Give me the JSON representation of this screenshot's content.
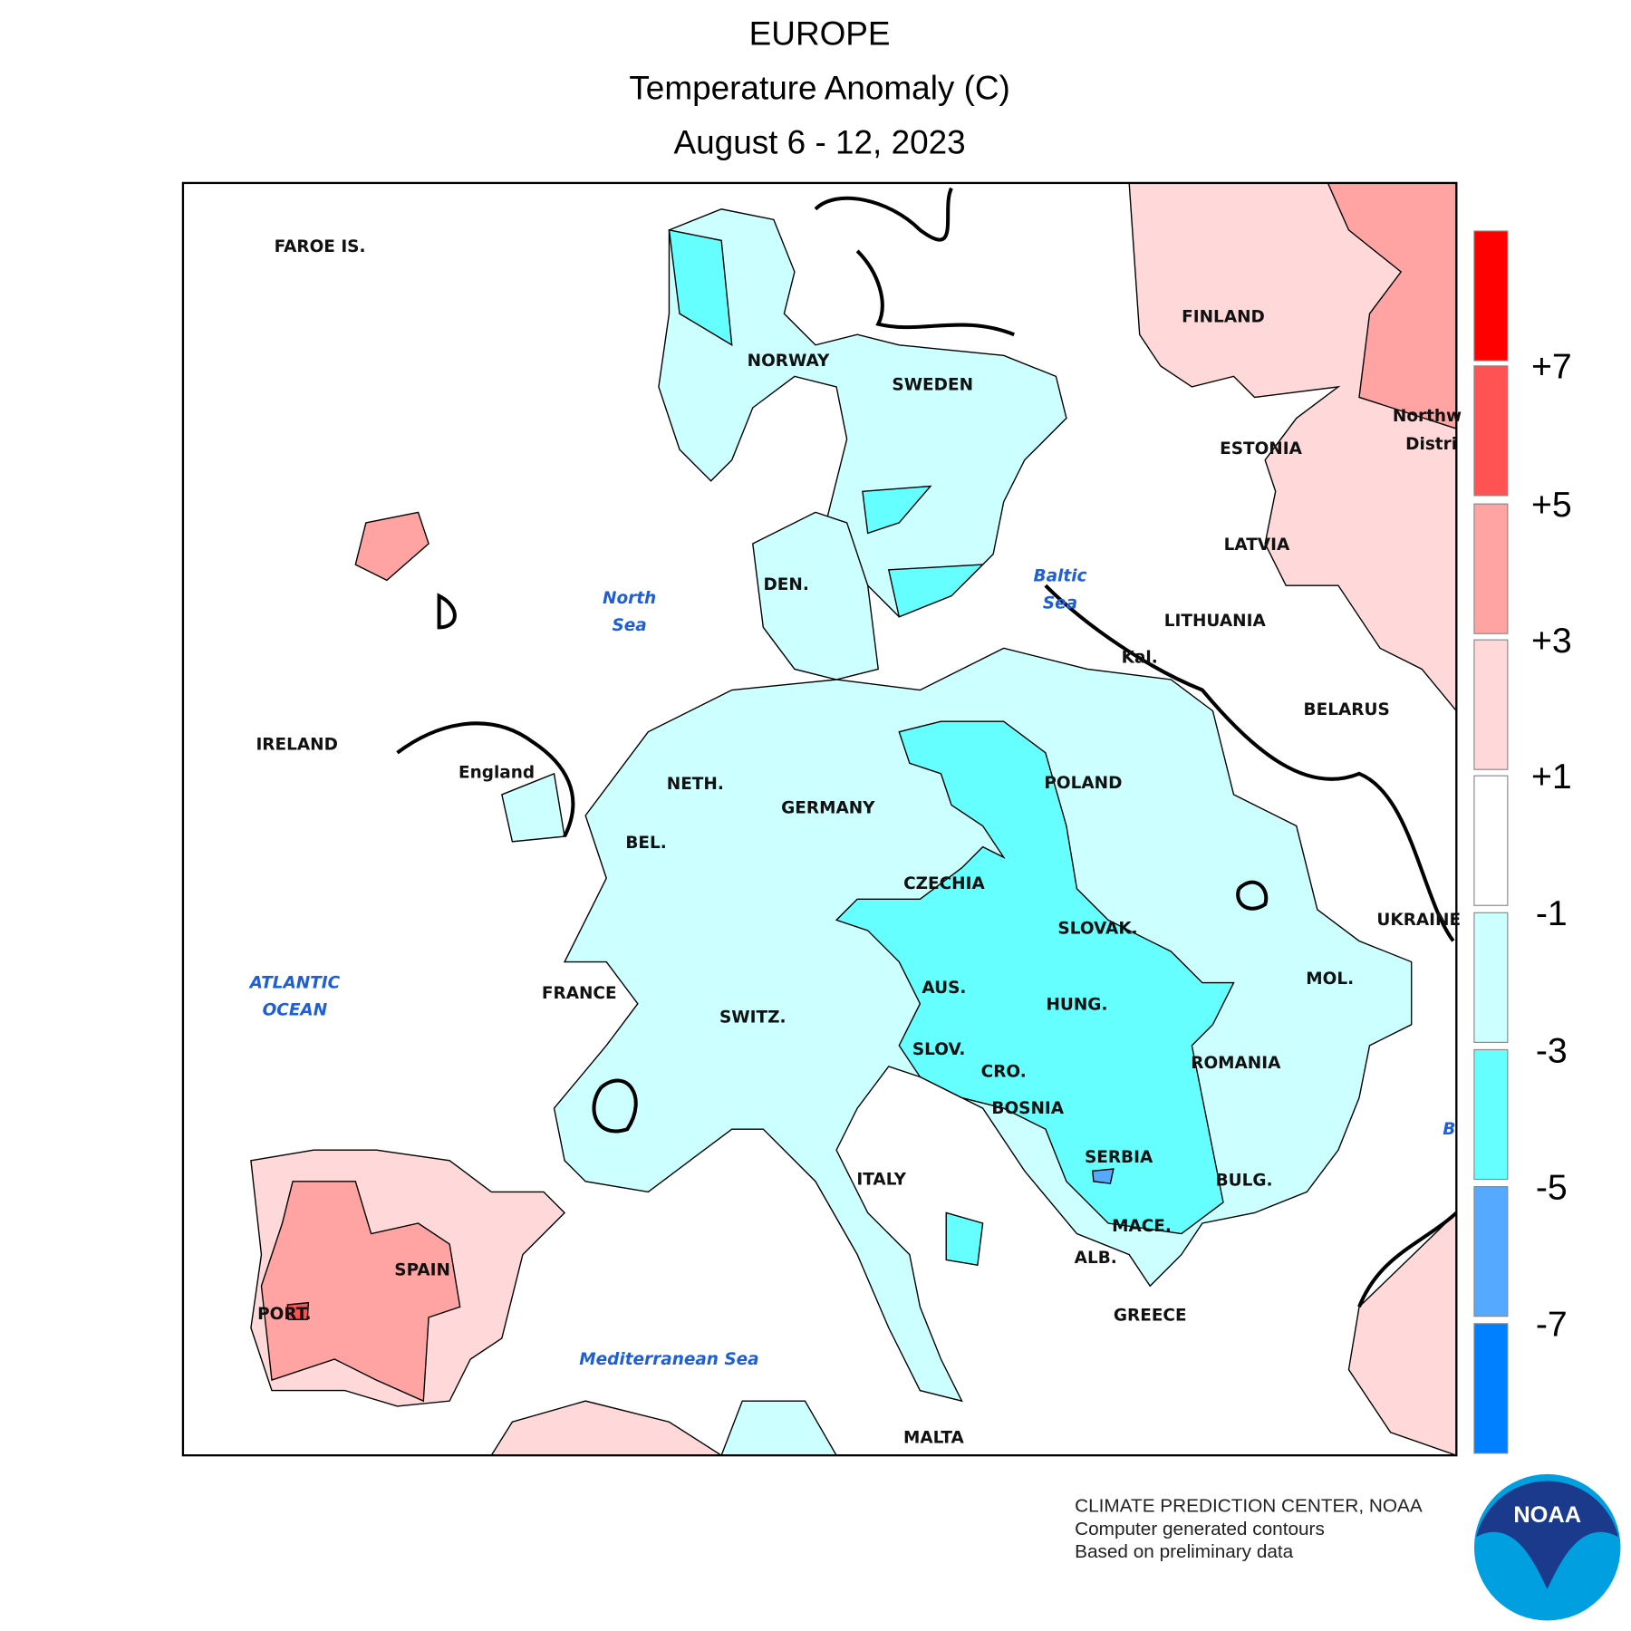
{
  "header": {
    "title": "EUROPE",
    "subtitle": "Temperature Anomaly (C)",
    "date": "August 6 - 12, 2023"
  },
  "map": {
    "labels": [
      "FAROE IS.",
      "NORWAY",
      "SWEDEN",
      "FINLAND",
      "ESTONIA",
      "LATVIA",
      "LITHUANIA",
      "BELARUS",
      "Northw",
      "Distri",
      "DEN.",
      "North",
      "Sea",
      "Baltic",
      "Sea",
      "Kal.",
      "IRELAND",
      "England",
      "NETH.",
      "GERMANY",
      "POLAND",
      "BEL.",
      "CZECHIA",
      "SLOVAK.",
      "UKRAINE",
      "MOL.",
      "FRANCE",
      "SWITZ.",
      "AUS.",
      "HUNG.",
      "ROMANIA",
      "SLOV.",
      "CRO.",
      "BOSNIA",
      "SERBIA",
      "BULG.",
      "ITALY",
      "MACE.",
      "ALB.",
      "GREECE",
      "SPAIN",
      "PORT.",
      "ATLANTIC",
      "OCEAN",
      "Mediterranean Sea",
      "MALTA",
      "B"
    ]
  },
  "legend": {
    "colors": [
      "#ff0000",
      "#ff5252",
      "#ffa3a3",
      "#ffd9d9",
      "#ffffff",
      "#ccffff",
      "#66ffff",
      "#55aaff",
      "#0080ff"
    ],
    "labels": [
      "+7",
      "+5",
      "+3",
      "+1",
      "-1",
      "-3",
      "-5",
      "-7"
    ]
  },
  "footer": {
    "lines": [
      "CLIMATE PREDICTION CENTER, NOAA",
      "Computer generated contours",
      "Based on preliminary data"
    ],
    "logo": "NOAA"
  }
}
